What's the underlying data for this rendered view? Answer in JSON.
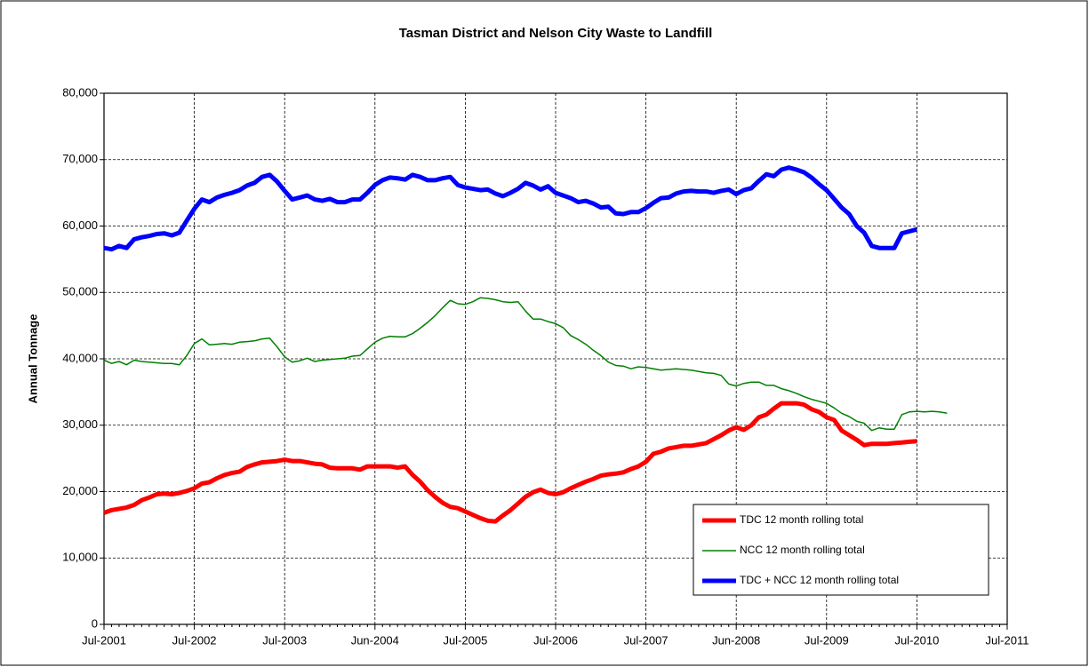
{
  "chart_data": {
    "type": "line",
    "title": "Tasman District and Nelson City Waste to Landfill",
    "y_label": "Annual Tonnage",
    "categories": [
      "Jul-2001",
      null,
      null,
      null,
      null,
      null,
      null,
      null,
      null,
      null,
      null,
      null,
      "Jul-2002",
      null,
      null,
      null,
      null,
      null,
      null,
      null,
      null,
      null,
      null,
      null,
      "Jul-2003",
      null,
      null,
      null,
      null,
      null,
      null,
      null,
      null,
      null,
      null,
      null,
      "Jun-2004",
      null,
      null,
      null,
      null,
      null,
      null,
      null,
      null,
      null,
      null,
      null,
      "Jul-2005",
      null,
      null,
      null,
      null,
      null,
      null,
      null,
      null,
      null,
      null,
      null,
      "Jul-2006",
      null,
      null,
      null,
      null,
      null,
      null,
      null,
      null,
      null,
      null,
      null,
      "Jul-2007",
      null,
      null,
      null,
      null,
      null,
      null,
      null,
      null,
      null,
      null,
      null,
      "Jun-2008",
      null,
      null,
      null,
      null,
      null,
      null,
      null,
      null,
      null,
      null,
      null,
      "Jul-2009",
      null,
      null,
      null,
      null,
      null,
      null,
      null,
      null,
      null,
      null,
      null,
      "Jul-2010",
      null,
      null,
      null,
      null,
      null,
      null,
      null,
      null,
      null,
      null,
      null,
      "Jul-2011"
    ],
    "series": [
      {
        "name": "TDC 12 month rolling total",
        "color": "#ff0000",
        "line_width": 5,
        "values": [
          16800,
          17200,
          17400,
          17600,
          18000,
          18700,
          19100,
          19600,
          19700,
          19600,
          19800,
          20100,
          20500,
          21200,
          21400,
          22000,
          22500,
          22800,
          23000,
          23700,
          24100,
          24400,
          24500,
          24600,
          24800,
          24600,
          24600,
          24400,
          24200,
          24100,
          23600,
          23500,
          23500,
          23500,
          23300,
          23800,
          23800,
          23800,
          23800,
          23600,
          23800,
          22500,
          21500,
          20200,
          19200,
          18300,
          17700,
          17500,
          17000,
          16500,
          16000,
          15600,
          15500,
          16400,
          17200,
          18200,
          19200,
          19900,
          20300,
          19800,
          19600,
          19900,
          20500,
          21000,
          21500,
          21900,
          22400,
          22600,
          22700,
          22900,
          23400,
          23800,
          24500,
          25700,
          26000,
          26500,
          26700,
          26900,
          26900,
          27100,
          27300,
          27900,
          28500,
          29200,
          29700,
          29300,
          30000,
          31200,
          31600,
          32500,
          33300,
          33300,
          33300,
          33100,
          32400,
          32000,
          31200,
          30800,
          29200,
          28500,
          27800,
          27000,
          27200,
          27200,
          27200,
          27300,
          27400,
          27500,
          27600,
          null,
          null,
          null,
          null,
          null,
          null,
          null,
          null,
          null,
          null,
          null,
          null
        ]
      },
      {
        "name": "NCC 12 month rolling total",
        "color": "#008000",
        "line_width": 1.5,
        "values": [
          39800,
          39300,
          39600,
          39100,
          39800,
          39600,
          39500,
          39400,
          39300,
          39300,
          39100,
          40500,
          42300,
          43000,
          42100,
          42200,
          42300,
          42200,
          42500,
          42600,
          42700,
          43000,
          43100,
          41800,
          40300,
          39500,
          39700,
          40100,
          39600,
          39800,
          39900,
          40000,
          40100,
          40400,
          40500,
          41500,
          42500,
          43100,
          43400,
          43300,
          43300,
          43800,
          44600,
          45500,
          46500,
          47700,
          48800,
          48300,
          48200,
          48600,
          49200,
          49100,
          48900,
          48600,
          48500,
          48600,
          47200,
          46000,
          46000,
          45600,
          45300,
          44700,
          43500,
          42900,
          42200,
          41300,
          40500,
          39500,
          39000,
          38900,
          38500,
          38800,
          38700,
          38500,
          38300,
          38400,
          38500,
          38400,
          38300,
          38100,
          37900,
          37800,
          37500,
          36200,
          35900,
          36300,
          36500,
          36500,
          36000,
          36000,
          35500,
          35200,
          34800,
          34300,
          33900,
          33600,
          33300,
          32600,
          31800,
          31300,
          30600,
          30300,
          29200,
          29600,
          29400,
          29400,
          31600,
          32000,
          32100,
          32000,
          32100,
          32000,
          31800,
          null,
          null,
          null,
          null,
          null,
          null,
          null,
          null
        ]
      },
      {
        "name": "TDC + NCC 12 month rolling total",
        "color": "#0000ff",
        "line_width": 5,
        "values": [
          56700,
          56500,
          57000,
          56700,
          58000,
          58300,
          58500,
          58800,
          58900,
          58600,
          59000,
          60800,
          62600,
          64000,
          63600,
          64300,
          64700,
          65000,
          65400,
          66100,
          66500,
          67400,
          67700,
          66700,
          65300,
          64000,
          64300,
          64600,
          64000,
          63800,
          64100,
          63600,
          63600,
          64000,
          64000,
          65000,
          66200,
          66900,
          67300,
          67200,
          67000,
          67700,
          67400,
          66900,
          66900,
          67200,
          67400,
          66200,
          65800,
          65600,
          65400,
          65500,
          64900,
          64500,
          65000,
          65600,
          66500,
          66100,
          65500,
          66000,
          65000,
          64600,
          64200,
          63600,
          63800,
          63400,
          62800,
          62900,
          61900,
          61800,
          62100,
          62100,
          62700,
          63500,
          64200,
          64300,
          64900,
          65200,
          65300,
          65200,
          65200,
          65000,
          65300,
          65500,
          64800,
          65400,
          65700,
          66800,
          67800,
          67500,
          68500,
          68800,
          68500,
          68100,
          67300,
          66300,
          65400,
          64100,
          62800,
          61800,
          60000,
          59000,
          57000,
          56700,
          56700,
          56700,
          58900,
          59200,
          59500,
          null,
          null,
          null,
          null,
          null,
          null,
          null,
          null,
          null,
          null,
          null,
          null
        ]
      }
    ],
    "ylim": [
      0,
      80000
    ],
    "yticks": [
      0,
      {
        "value": 10000,
        "label": "10,000"
      },
      {
        "value": 20000,
        "label": "20,000"
      },
      {
        "value": 30000,
        "label": "30,000"
      },
      {
        "value": 40000,
        "label": "40,000"
      },
      {
        "value": 50000,
        "label": "50,000"
      },
      {
        "value": 60000,
        "label": "60,000"
      },
      {
        "value": 70000,
        "label": "70,000"
      },
      {
        "value": 80000,
        "label": "80,000"
      }
    ],
    "grid": true,
    "legend": "lower right"
  }
}
